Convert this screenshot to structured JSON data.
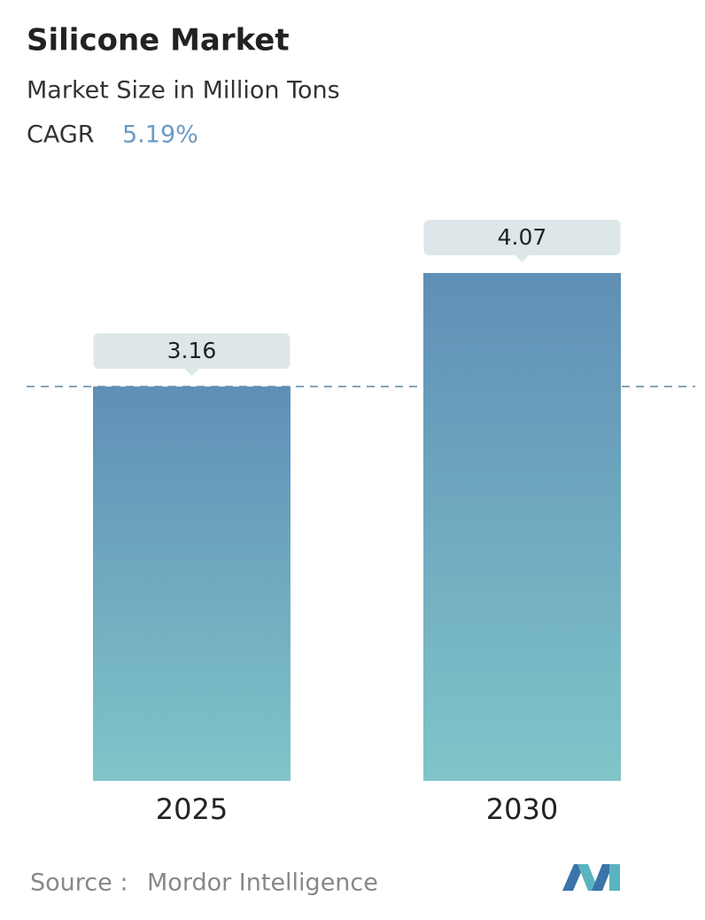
{
  "chart_data": {
    "type": "bar",
    "title": "Silicone Market",
    "subtitle": "Market Size in Million Tons",
    "cagr_label": "CAGR",
    "cagr": "5.19%",
    "categories": [
      "2025",
      "2030"
    ],
    "values": [
      3.16,
      4.07
    ],
    "source_label": "Source :",
    "source": "Mordor Intelligence"
  }
}
